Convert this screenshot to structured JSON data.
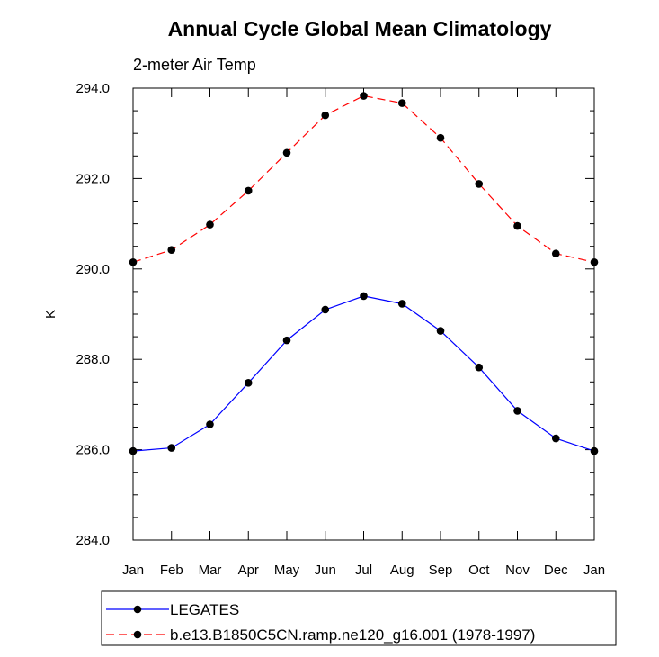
{
  "chart_data": {
    "type": "line",
    "title": "Annual Cycle Global Mean Climatology",
    "subtitle": "2-meter Air Temp",
    "ylabel": "K",
    "xlabel": "",
    "categories": [
      "Jan",
      "Feb",
      "Mar",
      "Apr",
      "May",
      "Jun",
      "Jul",
      "Aug",
      "Sep",
      "Oct",
      "Nov",
      "Dec",
      "Jan"
    ],
    "ylim": [
      284.0,
      294.0
    ],
    "yticks": [
      "284.0",
      "286.0",
      "288.0",
      "290.0",
      "292.0",
      "294.0"
    ],
    "grid": false,
    "legend_position": "bottom",
    "series": [
      {
        "name": "LEGATES",
        "color": "#0000ff",
        "dash": "solid",
        "marker": "circle",
        "values": [
          285.97,
          286.04,
          286.56,
          287.48,
          288.42,
          289.1,
          289.4,
          289.23,
          288.63,
          287.82,
          286.86,
          286.25,
          285.97
        ]
      },
      {
        "name": "b.e13.B1850C5CN.ramp.ne120_g16.001 (1978-1997)",
        "color": "#ff0000",
        "dash": "dashed",
        "marker": "circle",
        "values": [
          290.15,
          290.42,
          290.98,
          291.73,
          292.57,
          293.4,
          293.83,
          293.67,
          292.9,
          291.88,
          290.95,
          290.34,
          290.15
        ]
      }
    ]
  }
}
